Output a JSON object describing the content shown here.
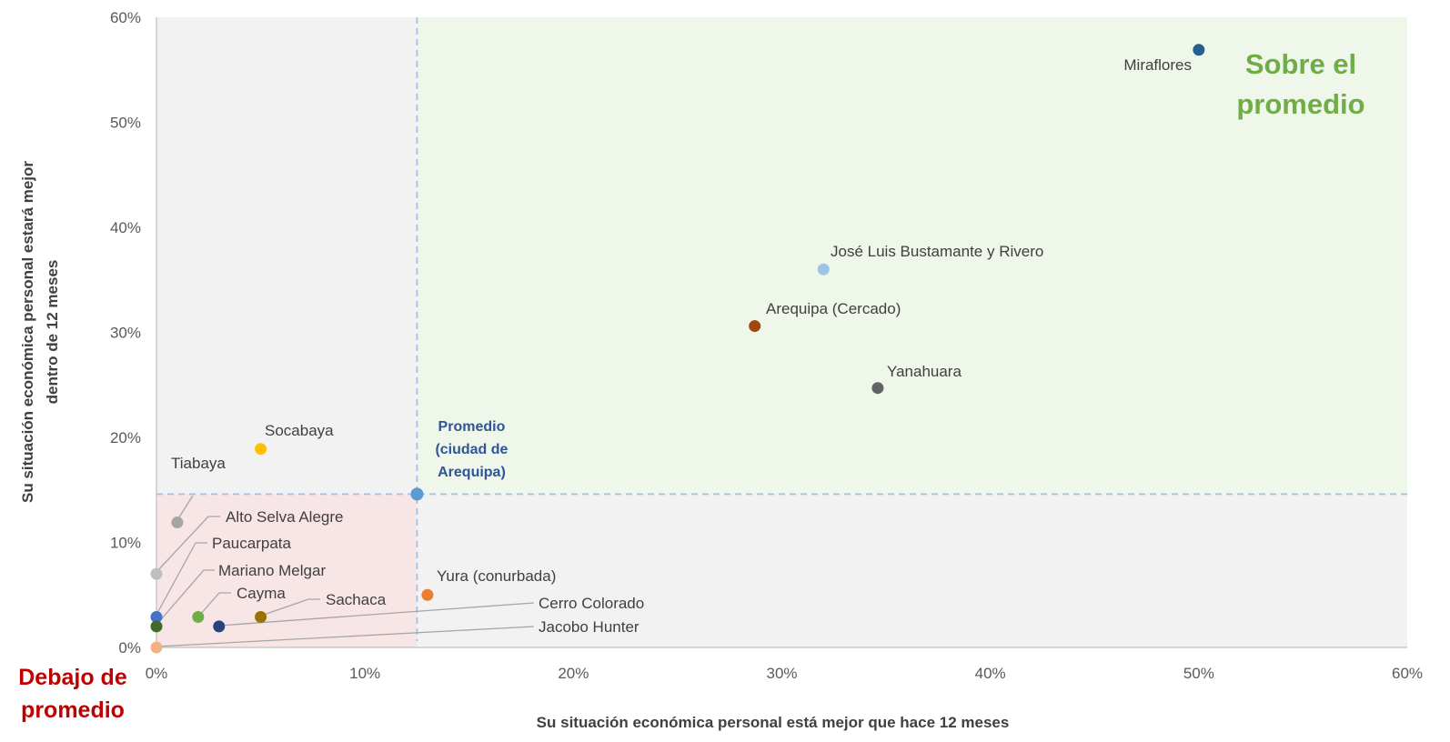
{
  "chart_data": {
    "type": "scatter",
    "title": "",
    "xlabel": "Su situación económica personal está mejor que hace 12 meses",
    "ylabel_lines": [
      "Su situación económica personal estará mejor",
      "dentro de 12 meses"
    ],
    "xlim": [
      0,
      60
    ],
    "ylim": [
      0,
      60
    ],
    "x_ticks": [
      "0%",
      "10%",
      "20%",
      "30%",
      "40%",
      "50%",
      "60%"
    ],
    "y_ticks": [
      "0%",
      "10%",
      "20%",
      "30%",
      "40%",
      "50%",
      "60%"
    ],
    "average": {
      "x": 12.5,
      "y": 14.6,
      "label_lines": [
        "Promedio",
        "(ciudad de",
        "Arequipa)"
      ],
      "color": "#5b9bd5"
    },
    "zones": {
      "above_lines": [
        "Sobre el",
        "promedio"
      ],
      "below_lines": [
        "Debajo de",
        "promedio"
      ],
      "above_color": "#eff6ea",
      "below_color": "#f8e5e6",
      "neutral_color": "#f2f2f2"
    },
    "points": [
      {
        "name": "Miraflores",
        "x": 50.0,
        "y": 56.9,
        "color": "#255e91"
      },
      {
        "name": "José Luis Bustamante y Rivero",
        "x": 32.0,
        "y": 36.0,
        "color": "#9dc3e6"
      },
      {
        "name": "Arequipa (Cercado)",
        "x": 28.7,
        "y": 30.6,
        "color": "#9e480e"
      },
      {
        "name": "Yanahuara",
        "x": 34.6,
        "y": 24.7,
        "color": "#636363"
      },
      {
        "name": "Socabaya",
        "x": 5.0,
        "y": 18.9,
        "color": "#ffc000"
      },
      {
        "name": "Tiabaya",
        "x": 1.0,
        "y": 11.9,
        "color": "#a5a5a5"
      },
      {
        "name": "Alto Selva Alegre",
        "x": 0.0,
        "y": 7.0,
        "color": "#bfbfbf"
      },
      {
        "name": "Paucarpata",
        "x": 0.0,
        "y": 2.9,
        "color": "#4472c4"
      },
      {
        "name": "Mariano Melgar",
        "x": 0.0,
        "y": 2.0,
        "color": "#43682b"
      },
      {
        "name": "Cayma",
        "x": 2.0,
        "y": 2.9,
        "color": "#70ad47"
      },
      {
        "name": "Sachaca",
        "x": 5.0,
        "y": 2.9,
        "color": "#997300"
      },
      {
        "name": "Yura (conurbada)",
        "x": 13.0,
        "y": 5.0,
        "color": "#ed7d31"
      },
      {
        "name": "Cerro Colorado",
        "x": 3.0,
        "y": 2.0,
        "color": "#264478"
      },
      {
        "name": "Jacobo Hunter",
        "x": 0.0,
        "y": 0.0,
        "color": "#f4b183"
      }
    ]
  }
}
